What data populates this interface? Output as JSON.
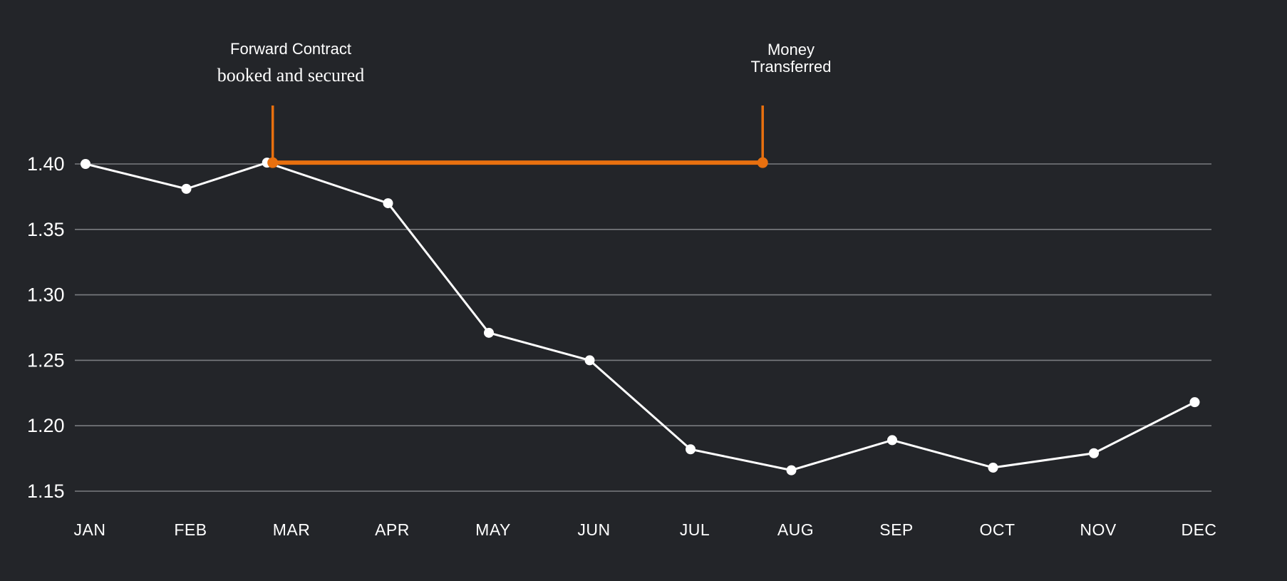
{
  "chart_data": {
    "type": "line",
    "title": "",
    "xlabel": "",
    "ylabel": "",
    "categories": [
      "JAN",
      "FEB",
      "MAR",
      "APR",
      "MAY",
      "JUN",
      "JUL",
      "AUG",
      "SEP",
      "OCT",
      "NOV",
      "DEC"
    ],
    "y_ticks": [
      "1.40",
      "1.35",
      "1.30",
      "1.25",
      "1.20",
      "1.15"
    ],
    "ylim": [
      1.15,
      1.4
    ],
    "grid": true,
    "legend": "none",
    "series": [
      {
        "x": [
          0,
          1,
          1.8,
          3,
          4,
          5,
          6,
          7,
          8,
          9,
          10,
          11
        ],
        "values": [
          1.4,
          1.381,
          1.401,
          1.37,
          1.271,
          1.25,
          1.182,
          1.166,
          1.189,
          1.168,
          1.179,
          1.218
        ]
      }
    ],
    "highlight": {
      "start_x": 1.8,
      "end_x": 6.8,
      "value": 1.401,
      "start_label_line1": "Forward Contract",
      "start_label_line2": "booked and secured",
      "end_label_line1": "Money",
      "end_label_line2": "Transferred"
    },
    "colors": {
      "background": "#232529",
      "line": "#ffffff",
      "grid": "#7a7c80",
      "accent": "#e8700f"
    }
  }
}
